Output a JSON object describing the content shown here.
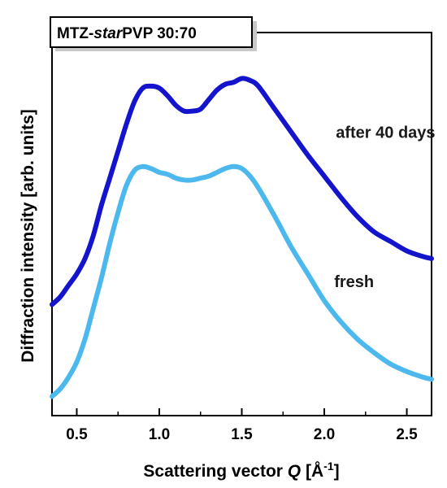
{
  "chart_data": {
    "type": "line",
    "title_prefix": "MTZ-",
    "title_italic": "star",
    "title_suffix": "PVP 30:70",
    "xlabel_prefix": "Scattering vector ",
    "xlabel_var": "Q",
    "xlabel_unit": "[Å",
    "xlabel_sup": "-1",
    "xlabel_close": "]",
    "ylabel": "Diffraction intensity [arb. units]",
    "xlim": [
      0.35,
      2.65
    ],
    "ylim": [
      0,
      1
    ],
    "x_ticks": [
      0.5,
      1.0,
      1.5,
      2.0,
      2.5
    ],
    "x_tick_labels": [
      "0.5",
      "1.0",
      "1.5",
      "2.0",
      "2.5"
    ],
    "y_ticks_shown": false,
    "series": [
      {
        "name": "after 40 days",
        "color": "#1414cc",
        "x": [
          0.35,
          0.4,
          0.45,
          0.5,
          0.55,
          0.6,
          0.65,
          0.7,
          0.75,
          0.8,
          0.85,
          0.9,
          0.95,
          1.0,
          1.05,
          1.1,
          1.15,
          1.2,
          1.25,
          1.3,
          1.35,
          1.4,
          1.45,
          1.5,
          1.55,
          1.6,
          1.7,
          1.8,
          1.9,
          2.0,
          2.1,
          2.2,
          2.3,
          2.4,
          2.5,
          2.6,
          2.65
        ],
        "y": [
          0.29,
          0.31,
          0.34,
          0.37,
          0.41,
          0.47,
          0.55,
          0.62,
          0.69,
          0.76,
          0.82,
          0.855,
          0.86,
          0.855,
          0.835,
          0.81,
          0.795,
          0.795,
          0.8,
          0.825,
          0.85,
          0.865,
          0.87,
          0.88,
          0.875,
          0.86,
          0.8,
          0.74,
          0.68,
          0.625,
          0.57,
          0.52,
          0.48,
          0.455,
          0.43,
          0.415,
          0.41
        ]
      },
      {
        "name": "fresh",
        "color": "#4db8ee",
        "x": [
          0.35,
          0.4,
          0.45,
          0.5,
          0.55,
          0.6,
          0.65,
          0.7,
          0.75,
          0.8,
          0.85,
          0.9,
          0.95,
          1.0,
          1.05,
          1.1,
          1.15,
          1.2,
          1.25,
          1.3,
          1.35,
          1.4,
          1.45,
          1.5,
          1.55,
          1.6,
          1.7,
          1.8,
          1.9,
          2.0,
          2.1,
          2.2,
          2.3,
          2.4,
          2.5,
          2.6,
          2.65
        ],
        "y": [
          0.05,
          0.07,
          0.1,
          0.14,
          0.2,
          0.28,
          0.36,
          0.45,
          0.53,
          0.6,
          0.64,
          0.65,
          0.645,
          0.635,
          0.63,
          0.62,
          0.615,
          0.615,
          0.62,
          0.625,
          0.635,
          0.645,
          0.65,
          0.645,
          0.625,
          0.595,
          0.52,
          0.44,
          0.37,
          0.3,
          0.245,
          0.2,
          0.165,
          0.135,
          0.115,
          0.1,
          0.095
        ]
      }
    ],
    "annotations": [
      {
        "text": "after 40 days",
        "x": 2.07,
        "y": 0.725
      },
      {
        "text": "fresh",
        "x": 2.06,
        "y": 0.335
      }
    ],
    "grid": false,
    "legend": "none"
  }
}
